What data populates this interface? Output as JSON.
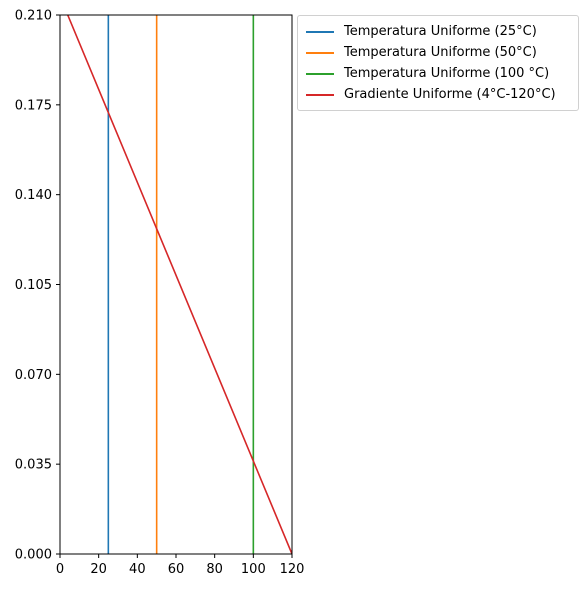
{
  "chart_data": {
    "type": "line",
    "title": "",
    "xlabel": "",
    "ylabel": "",
    "xlim": [
      0,
      120
    ],
    "ylim": [
      0,
      0.21
    ],
    "xticks": [
      "0",
      "20",
      "40",
      "60",
      "80",
      "100",
      "120"
    ],
    "yticks": [
      "0.000",
      "0.035",
      "0.070",
      "0.105",
      "0.140",
      "0.175",
      "0.210"
    ],
    "grid": false,
    "legend_position": "outside top-right",
    "series": [
      {
        "name": "Temperatura Uniforme (25°C)",
        "color": "#1f77b4",
        "x": [
          25,
          25
        ],
        "y": [
          0,
          0.21
        ]
      },
      {
        "name": "Temperatura Uniforme (50°C)",
        "color": "#ff7f0e",
        "x": [
          50,
          50
        ],
        "y": [
          0,
          0.21
        ]
      },
      {
        "name": "Temperatura Uniforme (100 °C)",
        "color": "#2ca02c",
        "x": [
          100,
          100
        ],
        "y": [
          0,
          0.21
        ]
      },
      {
        "name": "Gradiente Uniforme (4°C-120°C)",
        "color": "#d62728",
        "x": [
          4,
          120
        ],
        "y": [
          0.21,
          0
        ]
      }
    ]
  }
}
